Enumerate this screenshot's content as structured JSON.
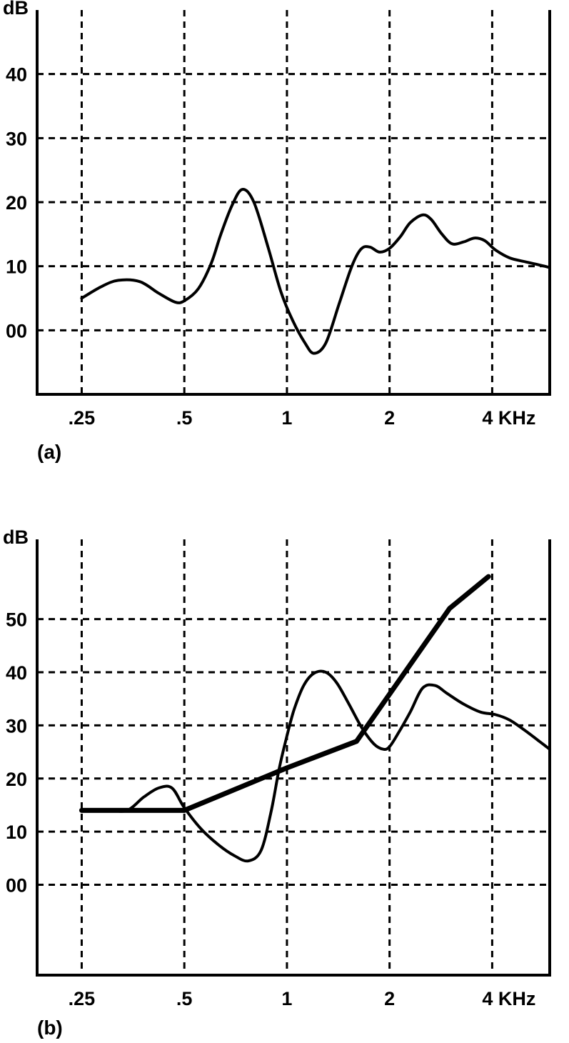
{
  "chart_data": [
    {
      "type": "line",
      "panel_label": "(a)",
      "ylabel": "dB",
      "x_tick_labels": [
        ".25",
        ".5",
        "1",
        "2",
        "4 KHz"
      ],
      "x_tick_values": [
        0.25,
        0.5,
        1,
        2,
        4
      ],
      "y_tick_labels": [
        "00",
        "10",
        "20",
        "30",
        "40"
      ],
      "y_tick_values": [
        0,
        10,
        20,
        30,
        40
      ],
      "xlim": [
        0.185,
        5.9
      ],
      "ylim": [
        -10,
        50
      ],
      "xscale": "log",
      "grid": true,
      "series": [
        {
          "weight": "medium",
          "x": [
            0.25,
            0.285,
            0.32,
            0.37,
            0.42,
            0.47,
            0.5,
            0.55,
            0.6,
            0.64,
            0.69,
            0.74,
            0.8,
            0.88,
            0.96,
            1.04,
            1.13,
            1.2,
            1.3,
            1.42,
            1.55,
            1.65,
            1.75,
            1.87,
            2.0,
            2.15,
            2.3,
            2.5,
            2.65,
            2.85,
            3.05,
            3.3,
            3.55,
            3.8,
            4.1,
            4.5,
            5.0,
            5.5,
            5.9
          ],
          "y": [
            5,
            6.8,
            7.8,
            7.6,
            5.8,
            4.4,
            4.6,
            6.5,
            10.5,
            15,
            19.5,
            22,
            20,
            13,
            6,
            1.5,
            -2,
            -3.6,
            -2,
            4,
            10,
            12.7,
            13,
            12.2,
            12.8,
            14.6,
            16.8,
            18,
            17.3,
            15,
            13.5,
            13.8,
            14.4,
            14,
            12.5,
            11.3,
            10.7,
            10.2,
            9.8
          ]
        }
      ]
    },
    {
      "type": "line",
      "panel_label": "(b)",
      "ylabel": "dB",
      "x_tick_labels": [
        ".25",
        ".5",
        "1",
        "2",
        "4 KHz"
      ],
      "x_tick_values": [
        0.25,
        0.5,
        1,
        2,
        4
      ],
      "y_tick_labels": [
        "00",
        "10",
        "20",
        "30",
        "40",
        "50"
      ],
      "y_tick_values": [
        0,
        10,
        20,
        30,
        40,
        50
      ],
      "xlim": [
        0.185,
        5.9
      ],
      "ylim": [
        -17,
        65
      ],
      "xscale": "log",
      "grid": true,
      "series": [
        {
          "weight": "medium",
          "x": [
            0.25,
            0.3,
            0.34,
            0.38,
            0.42,
            0.46,
            0.5,
            0.56,
            0.63,
            0.7,
            0.77,
            0.84,
            0.9,
            0.95,
            1.0,
            1.05,
            1.12,
            1.2,
            1.3,
            1.4,
            1.52,
            1.66,
            1.8,
            1.92,
            2.0,
            2.12,
            2.3,
            2.5,
            2.72,
            2.95,
            3.3,
            3.7,
            4.1,
            4.5,
            5.0,
            5.5,
            5.9
          ],
          "y": [
            14,
            14,
            14,
            16.5,
            18.2,
            18.2,
            14.5,
            10.5,
            7.5,
            5.5,
            4.5,
            6.5,
            14,
            22,
            28,
            33,
            37.5,
            39.8,
            40,
            38,
            34,
            29.5,
            26.5,
            25.5,
            26,
            28.5,
            32.5,
            37,
            37.5,
            36,
            34,
            32.5,
            32,
            31,
            29,
            27,
            25.5
          ]
        },
        {
          "weight": "heavy",
          "x": [
            0.25,
            0.3,
            0.5,
            1.0,
            1.6,
            3.0,
            3.9
          ],
          "y": [
            14,
            14,
            14,
            22,
            27,
            52,
            58
          ]
        }
      ]
    }
  ]
}
